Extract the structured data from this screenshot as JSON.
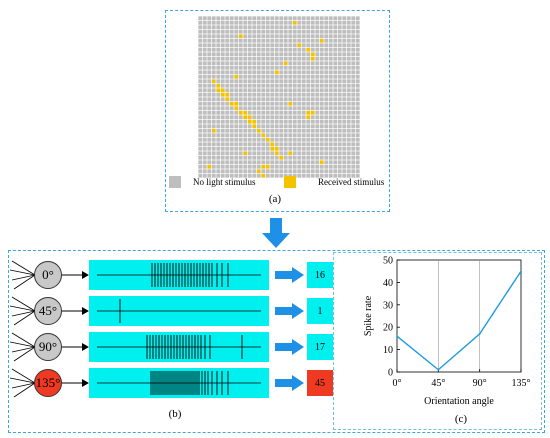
{
  "colors": {
    "grid_off": "#bebebe",
    "grid_on": "#f5c200",
    "cyan": "#00f0f0",
    "arrow_blue": "#1e90e6",
    "red": "#ef3a21",
    "neuron_gray": "#c8c8c8",
    "line_blue": "#1e9be0"
  },
  "panel_a": {
    "caption": "(a)",
    "legend_off": "No light stimulus",
    "legend_on": "Received stimulus",
    "active_cells": [
      [
        21,
        1
      ],
      [
        9,
        4
      ],
      [
        17,
        12
      ],
      [
        27,
        5
      ],
      [
        19,
        10
      ],
      [
        3,
        14
      ],
      [
        4,
        15
      ],
      [
        4,
        16
      ],
      [
        5,
        16
      ],
      [
        5,
        17
      ],
      [
        6,
        17
      ],
      [
        6,
        18
      ],
      [
        7,
        19
      ],
      [
        8,
        19
      ],
      [
        8,
        20
      ],
      [
        9,
        21
      ],
      [
        10,
        21
      ],
      [
        10,
        22
      ],
      [
        11,
        22
      ],
      [
        11,
        23
      ],
      [
        12,
        23
      ],
      [
        12,
        24
      ],
      [
        13,
        25
      ],
      [
        14,
        26
      ],
      [
        15,
        27
      ],
      [
        16,
        28
      ],
      [
        16,
        29
      ],
      [
        17,
        29
      ],
      [
        17,
        30
      ],
      [
        18,
        31
      ],
      [
        22,
        6
      ],
      [
        24,
        7
      ],
      [
        25,
        8
      ],
      [
        25,
        9
      ],
      [
        24,
        21
      ],
      [
        25,
        21
      ],
      [
        24,
        22
      ],
      [
        10,
        30
      ],
      [
        3,
        25
      ],
      [
        8,
        13
      ],
      [
        2,
        33
      ],
      [
        14,
        33
      ],
      [
        15,
        33
      ],
      [
        13,
        34
      ],
      [
        14,
        35
      ],
      [
        20,
        30
      ],
      [
        27,
        32
      ],
      [
        20,
        19
      ]
    ]
  },
  "panel_b": {
    "caption": "(b)",
    "neurons": [
      {
        "label": "0°",
        "rate": "16",
        "highlight": false,
        "spikes": [
          63,
          66,
          69,
          72,
          75,
          78,
          81,
          84,
          87,
          90,
          93,
          96,
          99,
          102,
          105,
          108,
          111,
          114,
          117,
          120,
          123,
          128,
          133,
          139
        ]
      },
      {
        "label": "45°",
        "rate": "1",
        "highlight": false,
        "spikes": [
          31
        ]
      },
      {
        "label": "90°",
        "rate": "17",
        "highlight": false,
        "spikes": [
          58,
          61,
          64,
          67,
          70,
          73,
          76,
          79,
          82,
          85,
          88,
          91,
          94,
          97,
          100,
          103,
          106,
          109,
          112,
          116,
          121,
          153
        ]
      },
      {
        "label": "135°",
        "rate": "45",
        "highlight": true,
        "spikes": [
          62,
          64,
          66,
          68,
          70,
          72,
          74,
          76,
          78,
          80,
          82,
          84,
          86,
          88,
          90,
          92,
          94,
          96,
          98,
          100,
          102,
          104,
          106,
          108,
          110,
          113,
          116,
          119,
          123,
          128,
          133,
          139
        ]
      }
    ]
  },
  "chart_data": {
    "type": "line",
    "x": [
      "0°",
      "45°",
      "90°",
      "135°"
    ],
    "values": [
      16,
      1,
      17,
      45
    ],
    "xlabel": "Orientation angle",
    "ylabel": "Spike rate",
    "ylim": [
      0,
      50
    ],
    "yticks": [
      "0",
      "10",
      "20",
      "30",
      "40",
      "50"
    ],
    "grid": true,
    "caption": "(c)"
  }
}
